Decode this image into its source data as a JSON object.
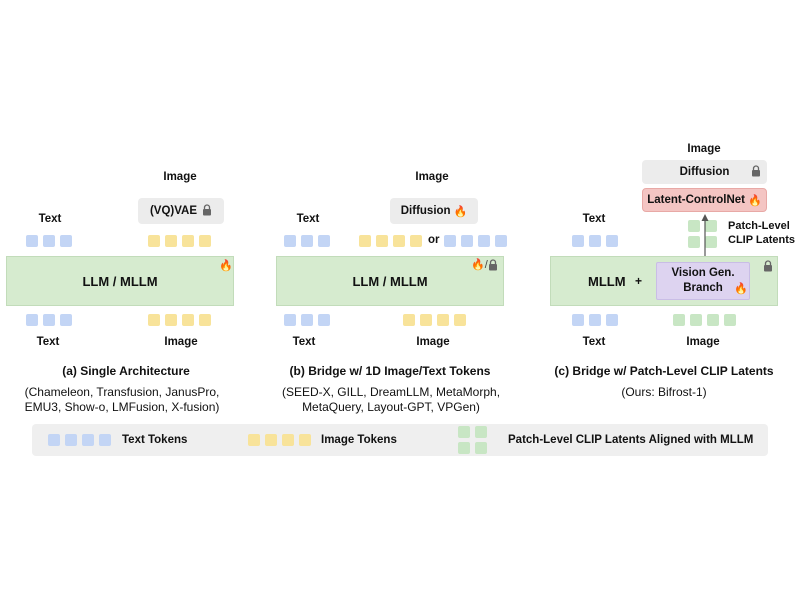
{
  "panel_a": {
    "text_top": "Text",
    "image_top": "Image",
    "vae_label": "(VQ)VAE",
    "llm_label": "LLM / MLLM",
    "text_bottom": "Text",
    "image_bottom": "Image",
    "caption": "(a) Single Architecture",
    "models_line1": "(Chameleon, Transfusion, JanusPro,",
    "models_line2": "EMU3, Show-o, LMFusion, X-fusion)"
  },
  "panel_b": {
    "image_title": "Image",
    "text_top": "Text",
    "diffusion_label": "Diffusion",
    "or_label": "or",
    "trainable_sep": "/",
    "llm_label": "LLM / MLLM",
    "text_bottom": "Text",
    "image_bottom": "Image",
    "caption": "(b) Bridge w/ 1D Image/Text Tokens",
    "models_line1": "(SEED-X, GILL, DreamLLM, MetaMorph,",
    "models_line2": "MetaQuery, Layout-GPT, VPGen)"
  },
  "panel_c": {
    "image_title": "Image",
    "diffusion_label": "Diffusion",
    "controlnet_label": "Latent-ControlNet",
    "text_top": "Text",
    "patch_label_line1": "Patch-Level",
    "patch_label_line2": "CLIP Latents",
    "mllm_label": "MLLM",
    "plus": "+",
    "branch_line1": "Vision Gen.",
    "branch_line2": "Branch",
    "text_bottom": "Text",
    "image_bottom": "Image",
    "caption": "(c) Bridge w/ Patch-Level CLIP Latents",
    "models_line1": "(Ours: Bifrost-1)"
  },
  "legend": {
    "text_tokens": "Text Tokens",
    "image_tokens": "Image Tokens",
    "patch_latents": "Patch-Level CLIP Latents Aligned with MLLM"
  },
  "colors": {
    "text_token": "#c3d5f5",
    "image_token": "#f8e39a",
    "clip_latent": "#c8e6c4",
    "llm_block": "#d6ebcf",
    "controlnet": "#f4c5c3",
    "vision_branch": "#ddd3f0"
  },
  "icons": [
    "fire-icon",
    "lock-icon",
    "arrow-up-icon"
  ]
}
